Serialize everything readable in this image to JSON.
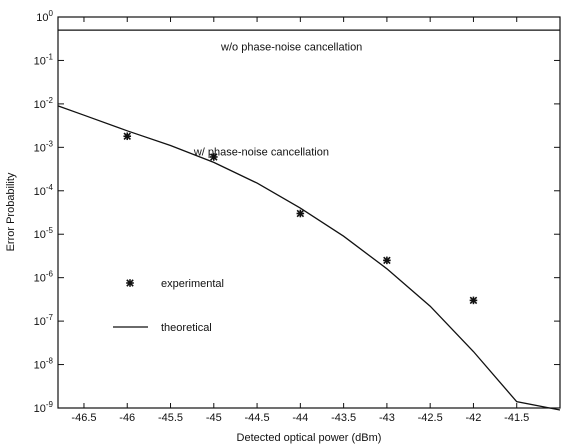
{
  "chart_data": {
    "type": "line",
    "xlabel": "Detected optical power  (dBm)",
    "ylabel": "Error Probability",
    "xlim": [
      -46.8,
      -41.0
    ],
    "ylim": [
      1e-09,
      1
    ],
    "yscale": "log",
    "grid": false,
    "x_ticks": [
      "-46.5",
      "-46",
      "-45.5",
      "-45",
      "-44.5",
      "-44",
      "-43.5",
      "-43",
      "-42.5",
      "-42",
      "-41.5"
    ],
    "y_tick_exponents": [
      0,
      -1,
      -2,
      -3,
      -4,
      -5,
      -6,
      -7,
      -8,
      -9
    ],
    "series": [
      {
        "name": "theoretical",
        "style": "line",
        "points": [
          [
            -46.8,
            0.009
          ],
          [
            -46.5,
            0.0055
          ],
          [
            -46.0,
            0.0024
          ],
          [
            -45.5,
            0.0011
          ],
          [
            -45.0,
            0.00045
          ],
          [
            -44.5,
            0.00015
          ],
          [
            -44.0,
            4e-05
          ],
          [
            -43.5,
            9e-06
          ],
          [
            -43.0,
            1.6e-06
          ],
          [
            -42.5,
            2.2e-07
          ],
          [
            -42.0,
            2e-08
          ],
          [
            -41.5,
            1.4e-09
          ],
          [
            -41.0,
            9e-10
          ]
        ]
      },
      {
        "name": "experimental",
        "style": "marker",
        "points": [
          [
            -46.0,
            0.0018
          ],
          [
            -45.0,
            0.0006
          ],
          [
            -44.0,
            3e-05
          ],
          [
            -43.0,
            2.5e-06
          ],
          [
            -42.0,
            3e-07
          ]
        ]
      },
      {
        "name": "",
        "style": "line",
        "points": [
          [
            -46.8,
            0.5
          ],
          [
            -41.0,
            0.5
          ]
        ]
      }
    ],
    "annotations": [
      {
        "text": "w/o phase-noise cancellation",
        "x": -44.1,
        "y": 0.17
      },
      {
        "text": "w/  phase-noise cancellation",
        "x": -44.45,
        "y": 0.00065
      }
    ],
    "legend": {
      "placement": "lower-left",
      "items": [
        {
          "label": "experimental",
          "marker": "star"
        },
        {
          "label": "theoretical",
          "marker": "line"
        }
      ]
    },
    "colors": {
      "ink": "#111111",
      "background": "#ffffff"
    }
  }
}
